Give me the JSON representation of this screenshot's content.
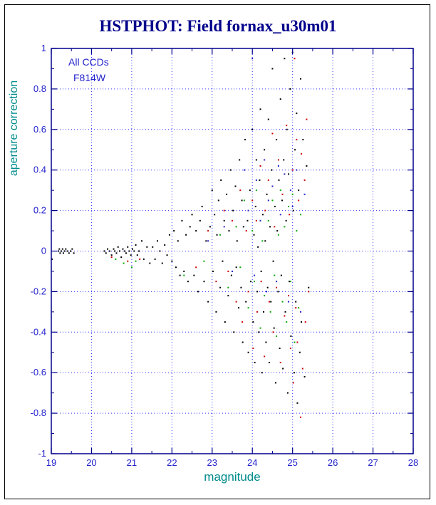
{
  "palette": {
    "title": "#00008b",
    "axis_label": "#008b8b",
    "tick_label": "#2222cc",
    "grid": "#3333ff",
    "frame": "#00008b",
    "annotation": "#2222cc",
    "window_border": "#000000"
  },
  "chart_data": {
    "type": "scatter",
    "title": "HSTPHOT: Field fornax_u30m01",
    "xlabel": "magnitude",
    "ylabel": "aperture correction",
    "xlim": [
      19,
      28
    ],
    "ylim": [
      -1,
      1
    ],
    "xticks": [
      19,
      20,
      21,
      22,
      23,
      24,
      25,
      26,
      27,
      28
    ],
    "xtick_labels": [
      "19",
      "20",
      "21",
      "22",
      "23",
      "24",
      "25",
      "26",
      "27",
      "28"
    ],
    "yticks": [
      -1,
      -0.8,
      -0.6,
      -0.4,
      -0.2,
      0,
      0.2,
      0.4,
      0.6,
      0.8,
      1
    ],
    "ytick_labels": [
      "-1",
      "-0.8",
      "-0.6",
      "-0.4",
      "-0.2",
      "0",
      "0.2",
      "0.4",
      "0.6",
      "0.8",
      "1"
    ],
    "grid": true,
    "legend": "none",
    "annotations": [
      {
        "text": "All CCDs"
      },
      {
        "text": "F814W"
      }
    ],
    "series": [
      {
        "name": "ccd-black",
        "color": "#000000",
        "points": [
          [
            19.02,
            -0.04
          ],
          [
            19.18,
            0.0
          ],
          [
            19.2,
            0.01
          ],
          [
            19.22,
            -0.01
          ],
          [
            19.25,
            0.0
          ],
          [
            19.28,
            0.01
          ],
          [
            19.3,
            -0.01
          ],
          [
            19.33,
            0.0
          ],
          [
            19.36,
            0.01
          ],
          [
            19.4,
            0.0
          ],
          [
            19.44,
            -0.01
          ],
          [
            19.48,
            0.0
          ],
          [
            19.52,
            0.01
          ],
          [
            19.56,
            -0.01
          ],
          [
            20.32,
            0.0
          ],
          [
            20.36,
            -0.01
          ],
          [
            20.4,
            0.01
          ],
          [
            20.45,
            0.0
          ],
          [
            20.5,
            -0.02
          ],
          [
            20.55,
            0.01
          ],
          [
            20.58,
            0.0
          ],
          [
            20.62,
            -0.01
          ],
          [
            20.66,
            0.02
          ],
          [
            20.7,
            0.0
          ],
          [
            20.74,
            -0.03
          ],
          [
            20.78,
            0.01
          ],
          [
            20.82,
            0.0
          ],
          [
            20.86,
            -0.01
          ],
          [
            20.9,
            0.02
          ],
          [
            20.94,
            0.0
          ],
          [
            20.98,
            -0.02
          ],
          [
            21.02,
            0.01
          ],
          [
            21.06,
            0.0
          ],
          [
            21.1,
            0.03
          ],
          [
            21.14,
            -0.02
          ],
          [
            21.18,
            0.0
          ],
          [
            21.25,
            0.05
          ],
          [
            21.3,
            -0.04
          ],
          [
            21.38,
            0.02
          ],
          [
            21.45,
            -0.06
          ],
          [
            21.52,
            0.02
          ],
          [
            21.58,
            -0.04
          ],
          [
            21.64,
            0.05
          ],
          [
            21.7,
            0.0
          ],
          [
            21.76,
            -0.06
          ],
          [
            21.82,
            0.03
          ],
          [
            21.88,
            -0.02
          ],
          [
            21.94,
            0.08
          ],
          [
            22.0,
            -0.05
          ],
          [
            22.05,
            0.1
          ],
          [
            22.1,
            -0.08
          ],
          [
            22.15,
            0.05
          ],
          [
            22.2,
            -0.12
          ],
          [
            22.25,
            0.15
          ],
          [
            22.3,
            -0.1
          ],
          [
            22.35,
            0.08
          ],
          [
            22.4,
            -0.15
          ],
          [
            22.45,
            0.12
          ],
          [
            22.5,
            0.18
          ],
          [
            22.55,
            -0.12
          ],
          [
            22.6,
            0.1
          ],
          [
            22.65,
            -0.2
          ],
          [
            22.7,
            0.15
          ],
          [
            22.75,
            0.22
          ],
          [
            22.8,
            -0.15
          ],
          [
            22.85,
            0.05
          ],
          [
            22.9,
            -0.25
          ],
          [
            22.95,
            0.12
          ],
          [
            23.0,
            0.3
          ],
          [
            23.02,
            -0.1
          ],
          [
            23.06,
            0.18
          ],
          [
            23.1,
            -0.3
          ],
          [
            23.12,
            0.08
          ],
          [
            23.16,
            0.25
          ],
          [
            23.2,
            -0.18
          ],
          [
            23.22,
            0.35
          ],
          [
            23.26,
            -0.05
          ],
          [
            23.3,
            0.15
          ],
          [
            23.32,
            -0.35
          ],
          [
            23.36,
            0.28
          ],
          [
            23.4,
            -0.22
          ],
          [
            23.42,
            0.1
          ],
          [
            23.46,
            0.4
          ],
          [
            23.48,
            -0.12
          ],
          [
            23.52,
            0.2
          ],
          [
            23.54,
            -0.4
          ],
          [
            23.58,
            0.32
          ],
          [
            23.6,
            -0.08
          ],
          [
            23.62,
            0.05
          ],
          [
            23.66,
            -0.28
          ],
          [
            23.68,
            0.45
          ],
          [
            23.72,
            -0.18
          ],
          [
            23.74,
            0.25
          ],
          [
            23.76,
            -0.45
          ],
          [
            23.78,
            0.12
          ],
          [
            23.82,
            0.55
          ],
          [
            23.84,
            -0.25
          ],
          [
            23.88,
            0.15
          ],
          [
            23.9,
            -0.5
          ],
          [
            23.94,
            0.3
          ],
          [
            23.96,
            -0.15
          ],
          [
            24.0,
            0.6
          ],
          [
            24.02,
            -0.35
          ],
          [
            24.04,
            0.08
          ],
          [
            24.06,
            -0.55
          ],
          [
            24.08,
            0.22
          ],
          [
            24.1,
            0.45
          ],
          [
            24.12,
            -0.2
          ],
          [
            24.14,
            0.02
          ],
          [
            24.16,
            -0.4
          ],
          [
            24.18,
            0.35
          ],
          [
            24.2,
            0.7
          ],
          [
            24.22,
            -0.1
          ],
          [
            24.24,
            -0.6
          ],
          [
            24.26,
            0.18
          ],
          [
            24.28,
            -0.3
          ],
          [
            24.3,
            0.5
          ],
          [
            24.32,
            0.05
          ],
          [
            24.34,
            -0.45
          ],
          [
            24.36,
            0.28
          ],
          [
            24.38,
            -0.18
          ],
          [
            24.4,
            0.65
          ],
          [
            24.42,
            -0.55
          ],
          [
            24.44,
            0.12
          ],
          [
            24.46,
            -0.25
          ],
          [
            24.48,
            0.4
          ],
          [
            24.5,
            0.9
          ],
          [
            24.52,
            -0.05
          ],
          [
            24.54,
            -0.38
          ],
          [
            24.56,
            0.22
          ],
          [
            24.58,
            -0.65
          ],
          [
            24.6,
            0.55
          ],
          [
            24.62,
            0.1
          ],
          [
            24.64,
            -0.2
          ],
          [
            24.66,
            0.35
          ],
          [
            24.68,
            -0.48
          ],
          [
            24.7,
            0.75
          ],
          [
            24.72,
            -0.12
          ],
          [
            24.74,
            0.25
          ],
          [
            24.76,
            -0.58
          ],
          [
            24.78,
            0.45
          ],
          [
            24.8,
            0.95
          ],
          [
            24.82,
            -0.3
          ],
          [
            24.84,
            0.15
          ],
          [
            24.86,
            0.6
          ],
          [
            24.88,
            -0.7
          ],
          [
            24.9,
            0.38
          ],
          [
            24.92,
            -0.15
          ],
          [
            24.94,
            0.8
          ],
          [
            24.96,
            -0.42
          ],
          [
            25.0,
            0.98
          ],
          [
            25.02,
            0.2
          ],
          [
            25.04,
            -0.6
          ],
          [
            25.06,
            0.5
          ],
          [
            25.08,
            -0.25
          ],
          [
            25.1,
            0.68
          ],
          [
            25.12,
            -0.75
          ],
          [
            25.15,
            0.3
          ],
          [
            25.18,
            -0.5
          ],
          [
            25.2,
            0.85
          ],
          [
            25.22,
            -0.35
          ],
          [
            25.26,
            0.55
          ],
          [
            25.3,
            -0.62
          ],
          [
            25.35,
            0.42
          ],
          [
            25.4,
            -0.18
          ]
        ]
      },
      {
        "name": "ccd-red",
        "color": "#cc0000",
        "points": [
          [
            20.5,
            -0.03
          ],
          [
            20.9,
            -0.05
          ],
          [
            21.2,
            -0.04
          ],
          [
            22.6,
            -0.08
          ],
          [
            22.9,
            0.1
          ],
          [
            23.1,
            -0.15
          ],
          [
            23.3,
            0.2
          ],
          [
            23.4,
            -0.1
          ],
          [
            23.5,
            0.15
          ],
          [
            23.6,
            -0.25
          ],
          [
            23.7,
            0.3
          ],
          [
            23.75,
            -0.35
          ],
          [
            23.85,
            0.1
          ],
          [
            23.9,
            -0.2
          ],
          [
            24.0,
            0.25
          ],
          [
            24.02,
            -0.48
          ],
          [
            24.1,
            0.15
          ],
          [
            24.12,
            -0.3
          ],
          [
            24.2,
            0.42
          ],
          [
            24.22,
            -0.15
          ],
          [
            24.3,
            -0.52
          ],
          [
            24.32,
            0.2
          ],
          [
            24.4,
            0.35
          ],
          [
            24.42,
            -0.25
          ],
          [
            24.5,
            0.58
          ],
          [
            24.52,
            -0.4
          ],
          [
            24.55,
            0.12
          ],
          [
            24.6,
            -0.18
          ],
          [
            24.65,
            0.45
          ],
          [
            24.7,
            -0.55
          ],
          [
            24.75,
            0.28
          ],
          [
            24.8,
            -0.32
          ],
          [
            24.85,
            0.62
          ],
          [
            24.9,
            -0.22
          ],
          [
            24.92,
            0.18
          ],
          [
            24.95,
            -0.48
          ],
          [
            25.0,
            0.4
          ],
          [
            25.02,
            -0.65
          ],
          [
            25.05,
            0.95
          ],
          [
            25.08,
            -0.28
          ],
          [
            25.1,
            0.55
          ],
          [
            25.12,
            -0.45
          ],
          [
            25.15,
            0.25
          ],
          [
            25.2,
            -0.82
          ],
          [
            25.22,
            0.48
          ],
          [
            25.25,
            -0.58
          ],
          [
            25.3,
            0.35
          ],
          [
            25.32,
            -0.35
          ],
          [
            25.35,
            0.65
          ],
          [
            25.4,
            -0.2
          ]
        ]
      },
      {
        "name": "ccd-green",
        "color": "#00aa00",
        "points": [
          [
            20.6,
            -0.04
          ],
          [
            20.8,
            -0.06
          ],
          [
            21.0,
            -0.08
          ],
          [
            21.1,
            -0.05
          ],
          [
            22.3,
            -0.12
          ],
          [
            22.8,
            -0.05
          ],
          [
            23.2,
            0.08
          ],
          [
            23.4,
            -0.18
          ],
          [
            23.6,
            0.12
          ],
          [
            23.7,
            -0.08
          ],
          [
            23.8,
            0.25
          ],
          [
            23.9,
            -0.28
          ],
          [
            24.0,
            0.1
          ],
          [
            24.05,
            -0.15
          ],
          [
            24.1,
            0.3
          ],
          [
            24.2,
            -0.38
          ],
          [
            24.25,
            0.05
          ],
          [
            24.3,
            -0.22
          ],
          [
            24.4,
            0.15
          ],
          [
            24.45,
            -0.3
          ],
          [
            24.5,
            0.25
          ],
          [
            24.55,
            -0.12
          ],
          [
            24.6,
            -0.42
          ],
          [
            24.65,
            0.08
          ],
          [
            24.7,
            0.3
          ],
          [
            24.75,
            -0.25
          ],
          [
            24.8,
            0.12
          ],
          [
            24.85,
            -0.35
          ],
          [
            24.9,
            0.22
          ],
          [
            24.95,
            -0.15
          ],
          [
            25.0,
            0.28
          ],
          [
            25.05,
            -0.45
          ],
          [
            25.1,
            0.1
          ],
          [
            25.15,
            -0.28
          ],
          [
            25.2,
            0.18
          ]
        ]
      },
      {
        "name": "ccd-blue",
        "color": "#2222cc",
        "points": [
          [
            22.9,
            0.05
          ],
          [
            23.3,
            0.12
          ],
          [
            23.5,
            -0.1
          ],
          [
            23.8,
            0.4
          ],
          [
            23.9,
            0.2
          ],
          [
            24.0,
            0.95
          ],
          [
            24.05,
            -0.12
          ],
          [
            24.1,
            0.35
          ],
          [
            24.2,
            0.15
          ],
          [
            24.3,
            0.45
          ],
          [
            24.35,
            -0.2
          ],
          [
            24.4,
            0.25
          ],
          [
            24.5,
            0.32
          ],
          [
            24.6,
            -0.15
          ],
          [
            24.65,
            0.42
          ],
          [
            24.7,
            0.18
          ],
          [
            24.8,
            0.38
          ],
          [
            24.9,
            -0.25
          ],
          [
            24.95,
            0.3
          ],
          [
            25.0,
            0.22
          ],
          [
            25.1,
            0.4
          ],
          [
            25.2,
            -0.3
          ],
          [
            25.3,
            0.28
          ]
        ]
      }
    ]
  }
}
